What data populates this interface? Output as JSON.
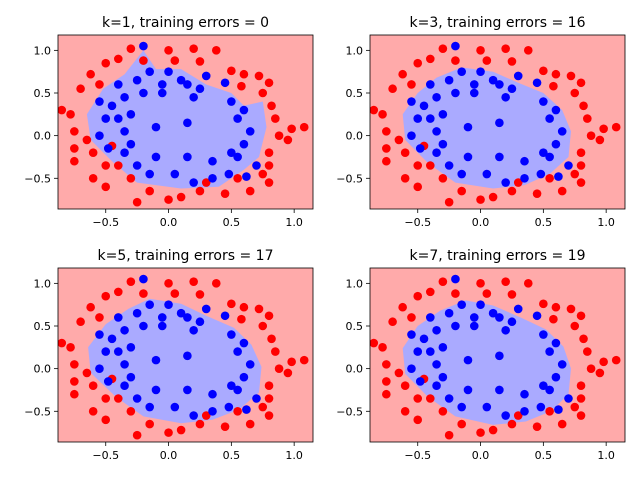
{
  "figure": {
    "colors": {
      "bg_region": "#ffaaaa",
      "fg_region": "#aaaaff",
      "class_red": "#ff0000",
      "class_blue": "#0000ff"
    }
  },
  "chart_data": [
    {
      "type": "scatter",
      "title": "k=1, training errors = 0",
      "k": 1,
      "training_errors": 0,
      "xlim": [
        -0.88,
        1.15
      ],
      "ylim": [
        -0.86,
        1.18
      ],
      "xticks": [
        -0.5,
        0.0,
        0.5,
        1.0
      ],
      "xtick_labels": [
        "−0.5",
        "0.0",
        "0.5",
        "1.0"
      ],
      "yticks": [
        -0.5,
        0.0,
        0.5,
        1.0
      ],
      "ytick_labels": [
        "−0.5",
        "0.0",
        "0.5",
        "1.0"
      ],
      "region_boundary": [
        [
          -0.52,
          0.55
        ],
        [
          -0.35,
          0.72
        ],
        [
          -0.2,
          1.0
        ],
        [
          -0.1,
          0.78
        ],
        [
          0.1,
          0.78
        ],
        [
          0.3,
          0.6
        ],
        [
          0.5,
          0.5
        ],
        [
          0.6,
          0.35
        ],
        [
          0.75,
          0.4
        ],
        [
          0.78,
          0.1
        ],
        [
          0.72,
          -0.25
        ],
        [
          0.6,
          -0.4
        ],
        [
          0.4,
          -0.6
        ],
        [
          0.1,
          -0.62
        ],
        [
          -0.25,
          -0.55
        ],
        [
          -0.45,
          -0.3
        ],
        [
          -0.62,
          -0.05
        ],
        [
          -0.65,
          0.25
        ]
      ]
    },
    {
      "type": "scatter",
      "title": "k=3, training errors = 16",
      "k": 3,
      "training_errors": 16,
      "xlim": [
        -0.88,
        1.15
      ],
      "ylim": [
        -0.86,
        1.18
      ],
      "xticks": [
        -0.5,
        0.0,
        0.5,
        1.0
      ],
      "xtick_labels": [
        "−0.5",
        "0.0",
        "0.5",
        "1.0"
      ],
      "yticks": [
        -0.5,
        0.0,
        0.5,
        1.0
      ],
      "ytick_labels": [
        "−0.5",
        "0.0",
        "0.5",
        "1.0"
      ],
      "region_boundary": [
        [
          -0.5,
          0.5
        ],
        [
          -0.35,
          0.68
        ],
        [
          -0.15,
          0.8
        ],
        [
          0.1,
          0.75
        ],
        [
          0.3,
          0.62
        ],
        [
          0.5,
          0.5
        ],
        [
          0.65,
          0.3
        ],
        [
          0.72,
          0.05
        ],
        [
          0.7,
          -0.25
        ],
        [
          0.55,
          -0.45
        ],
        [
          0.35,
          -0.58
        ],
        [
          0.1,
          -0.62
        ],
        [
          -0.2,
          -0.55
        ],
        [
          -0.42,
          -0.32
        ],
        [
          -0.6,
          -0.05
        ],
        [
          -0.62,
          0.25
        ]
      ]
    },
    {
      "type": "scatter",
      "title": "k=5, training errors = 17",
      "k": 5,
      "training_errors": 17,
      "xlim": [
        -0.88,
        1.15
      ],
      "ylim": [
        -0.86,
        1.18
      ],
      "xticks": [
        -0.5,
        0.0,
        0.5,
        1.0
      ],
      "xtick_labels": [
        "−0.5",
        "0.0",
        "0.5",
        "1.0"
      ],
      "yticks": [
        -0.5,
        0.0,
        0.5,
        1.0
      ],
      "ytick_labels": [
        "−0.5",
        "0.0",
        "0.5",
        "1.0"
      ],
      "region_boundary": [
        [
          -0.5,
          0.52
        ],
        [
          -0.32,
          0.7
        ],
        [
          -0.15,
          0.82
        ],
        [
          0.1,
          0.76
        ],
        [
          0.3,
          0.62
        ],
        [
          0.52,
          0.48
        ],
        [
          0.66,
          0.28
        ],
        [
          0.74,
          0.02
        ],
        [
          0.72,
          -0.28
        ],
        [
          0.56,
          -0.48
        ],
        [
          0.35,
          -0.6
        ],
        [
          0.1,
          -0.64
        ],
        [
          -0.2,
          -0.56
        ],
        [
          -0.42,
          -0.33
        ],
        [
          -0.62,
          -0.05
        ],
        [
          -0.64,
          0.25
        ]
      ]
    },
    {
      "type": "scatter",
      "title": "k=7, training errors = 19",
      "k": 7,
      "training_errors": 19,
      "xlim": [
        -0.88,
        1.15
      ],
      "ylim": [
        -0.86,
        1.18
      ],
      "xticks": [
        -0.5,
        0.0,
        0.5,
        1.0
      ],
      "xtick_labels": [
        "−0.5",
        "0.0",
        "0.5",
        "1.0"
      ],
      "yticks": [
        -0.5,
        0.0,
        0.5,
        1.0
      ],
      "ytick_labels": [
        "−0.5",
        "0.0",
        "0.5",
        "1.0"
      ],
      "region_boundary": [
        [
          -0.5,
          0.5
        ],
        [
          -0.32,
          0.68
        ],
        [
          -0.12,
          0.8
        ],
        [
          0.1,
          0.74
        ],
        [
          0.32,
          0.6
        ],
        [
          0.52,
          0.46
        ],
        [
          0.66,
          0.26
        ],
        [
          0.72,
          0.0
        ],
        [
          0.7,
          -0.3
        ],
        [
          0.56,
          -0.5
        ],
        [
          0.36,
          -0.62
        ],
        [
          0.1,
          -0.66
        ],
        [
          -0.2,
          -0.56
        ],
        [
          -0.42,
          -0.33
        ],
        [
          -0.6,
          -0.06
        ],
        [
          -0.62,
          0.24
        ]
      ]
    }
  ],
  "points": {
    "red": [
      [
        -0.3,
        1.02
      ],
      [
        0.0,
        1.0
      ],
      [
        0.2,
        1.02
      ],
      [
        0.38,
        1.0
      ],
      [
        -0.5,
        0.85
      ],
      [
        -0.4,
        0.9
      ],
      [
        -0.2,
        0.88
      ],
      [
        0.05,
        0.88
      ],
      [
        0.25,
        0.87
      ],
      [
        -0.62,
        0.72
      ],
      [
        -0.7,
        0.55
      ],
      [
        -0.55,
        0.6
      ],
      [
        0.5,
        0.76
      ],
      [
        0.6,
        0.72
      ],
      [
        0.72,
        0.7
      ],
      [
        0.58,
        0.58
      ],
      [
        0.8,
        0.62
      ],
      [
        0.75,
        0.5
      ],
      [
        -0.85,
        0.3
      ],
      [
        -0.78,
        0.25
      ],
      [
        -0.75,
        0.05
      ],
      [
        0.82,
        0.35
      ],
      [
        0.85,
        0.2
      ],
      [
        0.98,
        0.08
      ],
      [
        1.08,
        0.1
      ],
      [
        0.88,
        0.0
      ],
      [
        0.95,
        -0.05
      ],
      [
        -0.75,
        -0.15
      ],
      [
        -0.75,
        -0.3
      ],
      [
        -0.65,
        -0.05
      ],
      [
        -0.6,
        -0.2
      ],
      [
        -0.6,
        -0.5
      ],
      [
        -0.5,
        -0.35
      ],
      [
        -0.5,
        -0.6
      ],
      [
        -0.4,
        -0.35
      ],
      [
        0.8,
        -0.2
      ],
      [
        0.8,
        -0.35
      ],
      [
        0.75,
        -0.45
      ],
      [
        -0.15,
        -0.65
      ],
      [
        0.1,
        -0.72
      ],
      [
        0.25,
        -0.65
      ],
      [
        0.45,
        -0.68
      ],
      [
        0.65,
        -0.65
      ],
      [
        0.8,
        -0.55
      ],
      [
        -0.25,
        -0.78
      ],
      [
        0.0,
        -0.75
      ],
      [
        0.55,
        -0.5
      ],
      [
        -0.45,
        -0.12
      ],
      [
        -0.3,
        -0.5
      ],
      [
        0.3,
        -0.55
      ]
    ],
    "blue": [
      [
        -0.2,
        1.05
      ],
      [
        -0.15,
        0.75
      ],
      [
        0.0,
        0.75
      ],
      [
        -0.25,
        0.65
      ],
      [
        -0.05,
        0.6
      ],
      [
        0.1,
        0.65
      ],
      [
        0.3,
        0.7
      ],
      [
        0.15,
        0.6
      ],
      [
        0.45,
        0.62
      ],
      [
        -0.4,
        0.6
      ],
      [
        -0.55,
        0.4
      ],
      [
        -0.45,
        0.35
      ],
      [
        -0.35,
        0.45
      ],
      [
        -0.2,
        0.5
      ],
      [
        -0.05,
        0.5
      ],
      [
        0.25,
        0.55
      ],
      [
        0.5,
        0.4
      ],
      [
        0.55,
        0.2
      ],
      [
        0.6,
        0.3
      ],
      [
        0.2,
        0.45
      ],
      [
        -0.5,
        0.2
      ],
      [
        -0.4,
        0.2
      ],
      [
        -0.3,
        0.25
      ],
      [
        -0.55,
        0.0
      ],
      [
        -0.35,
        0.05
      ],
      [
        -0.1,
        0.1
      ],
      [
        0.15,
        0.15
      ],
      [
        0.65,
        0.05
      ],
      [
        0.6,
        -0.1
      ],
      [
        0.55,
        -0.25
      ],
      [
        0.5,
        -0.2
      ],
      [
        0.35,
        -0.3
      ],
      [
        0.15,
        -0.25
      ],
      [
        -0.1,
        -0.25
      ],
      [
        -0.35,
        -0.2
      ],
      [
        -0.25,
        -0.35
      ],
      [
        -0.15,
        -0.45
      ],
      [
        0.05,
        -0.45
      ],
      [
        0.2,
        -0.55
      ],
      [
        0.35,
        -0.5
      ],
      [
        0.48,
        -0.45
      ],
      [
        0.62,
        -0.48
      ],
      [
        -0.3,
        -0.1
      ],
      [
        -0.48,
        -0.15
      ],
      [
        0.7,
        -0.35
      ]
    ]
  }
}
